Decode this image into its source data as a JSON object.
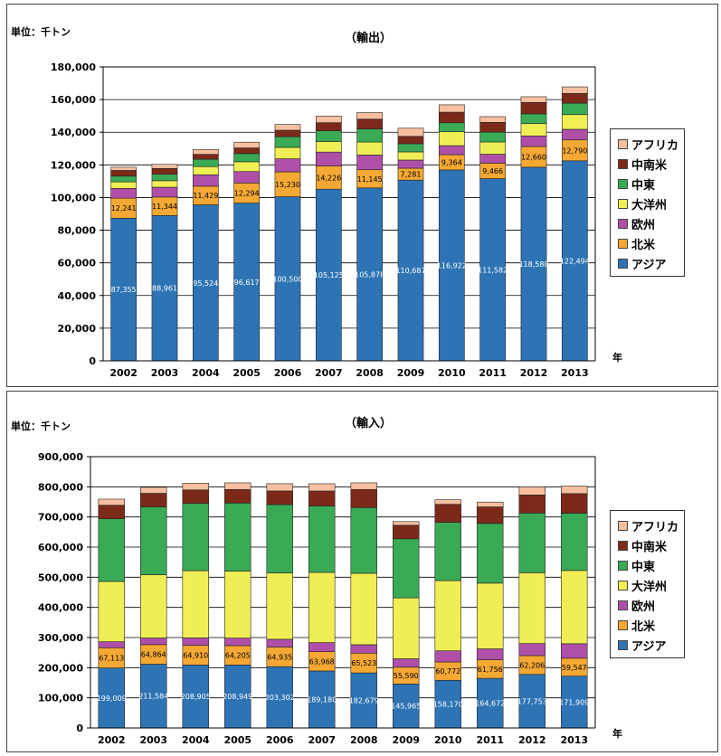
{
  "colors": {
    "アジア": "#2e74b5",
    "北米": "#f5a833",
    "欧州": "#b04fa8",
    "大洋州": "#f0ee55",
    "中東": "#3aaa55",
    "中南米": "#7b2a1a",
    "アフリカ": "#f7bfa0"
  },
  "chart_data": [
    {
      "type": "bar",
      "stacked": true,
      "title": "（輸出）",
      "unit_label": "単位：千トン",
      "xlabel": "年",
      "ylim": [
        0,
        180000
      ],
      "yticks": [
        0,
        20000,
        40000,
        60000,
        80000,
        100000,
        120000,
        140000,
        160000,
        180000
      ],
      "ytick_labels": [
        "0",
        "20,000",
        "40,000",
        "60,000",
        "80,000",
        "100,000",
        "120,000",
        "140,000",
        "160,000",
        "180,000"
      ],
      "categories": [
        "2002",
        "2003",
        "2004",
        "2005",
        "2006",
        "2007",
        "2008",
        "2009",
        "2010",
        "2011",
        "2012",
        "2013"
      ],
      "legend": [
        "アフリカ",
        "中南米",
        "中東",
        "大洋州",
        "欧州",
        "北米",
        "アジア"
      ],
      "legend_position": "right",
      "series": [
        {
          "name": "アジア",
          "values": [
            87355,
            88961,
            95524,
            96617,
            100500,
            105125,
            105878,
            110687,
            116922,
            111582,
            118588,
            122494
          ],
          "labels": [
            "87,355",
            "88,961",
            "95,524",
            "96,617",
            "100,500",
            "105,125",
            "105,878",
            "110,687",
            "116,922",
            "111,582",
            "118,588",
            "122,494"
          ]
        },
        {
          "name": "北米",
          "values": [
            12241,
            11344,
            11429,
            12294,
            15230,
            14226,
            11145,
            7281,
            9364,
            9466,
            12660,
            12790
          ],
          "labels": [
            "12,241",
            "11,344",
            "11,429",
            "12,294",
            "15,230",
            "14,226",
            "11,145",
            "7,281",
            "9,364",
            "9,466",
            "12,660",
            "12,790"
          ]
        },
        {
          "name": "欧州",
          "values": [
            6000,
            6000,
            7000,
            7000,
            8000,
            8500,
            9000,
            5000,
            5500,
            5500,
            6500,
            6500
          ]
        },
        {
          "name": "大洋州",
          "values": [
            4000,
            4000,
            5000,
            6000,
            7000,
            6500,
            8000,
            5000,
            8500,
            7500,
            7500,
            9000
          ]
        },
        {
          "name": "中東",
          "values": [
            3500,
            4000,
            4500,
            5000,
            6500,
            6500,
            8000,
            5000,
            5500,
            6000,
            6000,
            7000
          ]
        },
        {
          "name": "中南米",
          "values": [
            3500,
            3500,
            3000,
            3500,
            4000,
            5000,
            6000,
            4500,
            6500,
            6000,
            7000,
            6000
          ]
        },
        {
          "name": "アフリカ",
          "values": [
            2000,
            2500,
            3000,
            3500,
            3500,
            4000,
            4000,
            5000,
            4500,
            3500,
            3500,
            4000
          ]
        }
      ]
    },
    {
      "type": "bar",
      "stacked": true,
      "title": "（輸入）",
      "unit_label": "単位：千トン",
      "xlabel": "年",
      "ylim": [
        0,
        900000
      ],
      "yticks": [
        0,
        100000,
        200000,
        300000,
        400000,
        500000,
        600000,
        700000,
        800000,
        900000
      ],
      "ytick_labels": [
        "0",
        "100,000",
        "200,000",
        "300,000",
        "400,000",
        "500,000",
        "600,000",
        "700,000",
        "800,000",
        "900,000"
      ],
      "categories": [
        "2002",
        "2003",
        "2004",
        "2005",
        "2006",
        "2007",
        "2008",
        "2009",
        "2010",
        "2011",
        "2012",
        "2013"
      ],
      "legend": [
        "アフリカ",
        "中南米",
        "中東",
        "大洋州",
        "欧州",
        "北米",
        "アジア"
      ],
      "legend_position": "right",
      "series": [
        {
          "name": "アジア",
          "values": [
            199009,
            211584,
            208905,
            208949,
            203302,
            189180,
            182679,
            145965,
            158170,
            164672,
            177753,
            171909
          ],
          "labels": [
            "199,009",
            "211,584",
            "208,905",
            "208,949",
            "203,302",
            "189,180",
            "182,679",
            "145,965",
            "158,170",
            "164,672",
            "177,753",
            "171,909"
          ]
        },
        {
          "name": "北米",
          "values": [
            67113,
            64864,
            64910,
            64205,
            64935,
            63968,
            65523,
            55590,
            60772,
            61756,
            62206,
            59547
          ],
          "labels": [
            "67,113",
            "64,864",
            "64,910",
            "64,205",
            "64,935",
            "63,968",
            "65,523",
            "55,590",
            "60,772",
            "61,756",
            "62,206",
            "59,547"
          ]
        },
        {
          "name": "欧州",
          "values": [
            20000,
            22000,
            25000,
            25000,
            26000,
            30000,
            28000,
            28000,
            37000,
            36000,
            40000,
            48000
          ]
        },
        {
          "name": "大洋州",
          "values": [
            200000,
            210000,
            223000,
            222000,
            220000,
            233000,
            237000,
            202000,
            233000,
            218000,
            235000,
            243000
          ]
        },
        {
          "name": "中東",
          "values": [
            208000,
            225000,
            223000,
            226000,
            227000,
            220000,
            218000,
            196000,
            193000,
            198000,
            198000,
            190000
          ]
        },
        {
          "name": "中南米",
          "values": [
            45000,
            45000,
            45000,
            45000,
            45000,
            50000,
            60000,
            45000,
            60000,
            55000,
            60000,
            65000
          ]
        },
        {
          "name": "アフリカ",
          "values": [
            20000,
            20000,
            22000,
            22000,
            24000,
            24000,
            22000,
            12000,
            15000,
            16000,
            27000,
            25000
          ]
        }
      ]
    }
  ]
}
